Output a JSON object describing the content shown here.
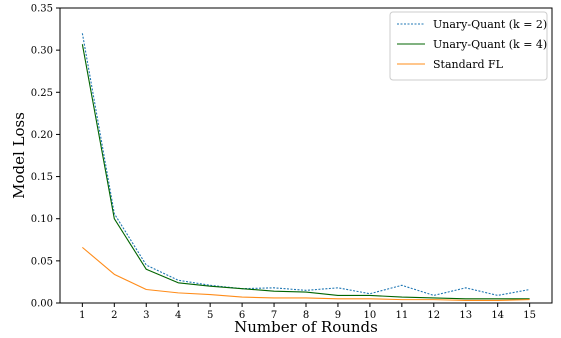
{
  "chart_data": {
    "type": "line",
    "xlabel": "Number of Rounds",
    "ylabel": "Model Loss",
    "x": [
      1,
      2,
      3,
      4,
      5,
      6,
      7,
      8,
      9,
      10,
      11,
      12,
      13,
      14,
      15
    ],
    "xlim": [
      0.3,
      15.7
    ],
    "ylim": [
      0,
      0.35
    ],
    "xticks": [
      "1",
      "2",
      "3",
      "4",
      "5",
      "6",
      "7",
      "8",
      "9",
      "10",
      "11",
      "12",
      "13",
      "14",
      "15"
    ],
    "yticks": [
      "0.00",
      "0.05",
      "0.10",
      "0.15",
      "0.20",
      "0.25",
      "0.30",
      "0.35"
    ],
    "grid": false,
    "legend_position": "top-right",
    "series": [
      {
        "name": "Unary-Quant (k = 2)",
        "color": "#1f77b4",
        "line_style": "dotted",
        "values": [
          0.32,
          0.106,
          0.045,
          0.027,
          0.021,
          0.017,
          0.018,
          0.015,
          0.018,
          0.011,
          0.021,
          0.009,
          0.018,
          0.009,
          0.016
        ]
      },
      {
        "name": "Unary-Quant (k = 4)",
        "color": "#006400",
        "line_style": "solid",
        "values": [
          0.307,
          0.1,
          0.04,
          0.024,
          0.02,
          0.017,
          0.014,
          0.013,
          0.009,
          0.009,
          0.007,
          0.006,
          0.005,
          0.005,
          0.005
        ]
      },
      {
        "name": "Standard FL",
        "color": "#ff8c1a",
        "line_style": "solid",
        "values": [
          0.066,
          0.034,
          0.016,
          0.012,
          0.01,
          0.007,
          0.006,
          0.006,
          0.005,
          0.005,
          0.004,
          0.004,
          0.003,
          0.003,
          0.004
        ]
      }
    ]
  }
}
